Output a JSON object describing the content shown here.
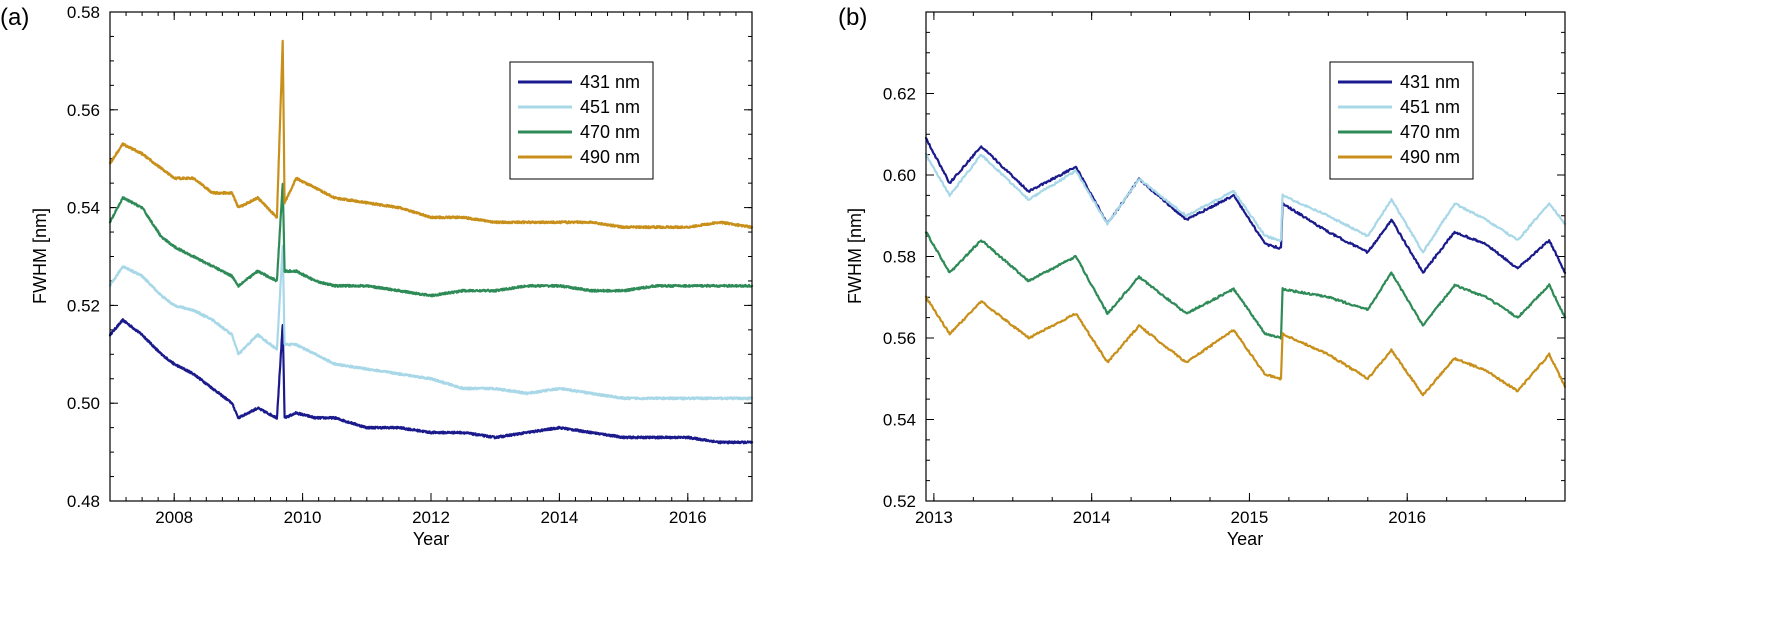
{
  "chart_data": [
    {
      "panel": "(a)",
      "type": "line",
      "xlabel": "Year",
      "ylabel": "FWHM [nm]",
      "xlim": [
        2007,
        2017
      ],
      "ylim": [
        0.48,
        0.58
      ],
      "xticks": [
        2008,
        2010,
        2012,
        2014,
        2016
      ],
      "yticks": [
        0.48,
        0.5,
        0.52,
        0.54,
        0.56,
        0.58
      ],
      "ytick_labels": [
        "0.48",
        "0.50",
        "0.52",
        "0.54",
        "0.56",
        "0.58"
      ],
      "legend_position": "top-right",
      "series": [
        {
          "name": "431 nm",
          "color": "#1a1a8c",
          "x": [
            2007.0,
            2007.2,
            2007.5,
            2007.8,
            2008.0,
            2008.3,
            2008.6,
            2008.9,
            2009.0,
            2009.3,
            2009.6,
            2009.69,
            2009.72,
            2009.9,
            2010.2,
            2010.5,
            2011.0,
            2011.5,
            2012.0,
            2012.5,
            2013.0,
            2013.5,
            2014.0,
            2014.5,
            2015.0,
            2015.5,
            2016.0,
            2016.5,
            2017.0
          ],
          "y": [
            0.514,
            0.517,
            0.514,
            0.51,
            0.508,
            0.506,
            0.503,
            0.5,
            0.497,
            0.499,
            0.497,
            0.516,
            0.497,
            0.498,
            0.497,
            0.497,
            0.495,
            0.495,
            0.494,
            0.494,
            0.493,
            0.494,
            0.495,
            0.494,
            0.493,
            0.493,
            0.493,
            0.492,
            0.492
          ]
        },
        {
          "name": "451 nm",
          "color": "#a8d8e8",
          "x": [
            2007.0,
            2007.2,
            2007.5,
            2007.8,
            2008.0,
            2008.3,
            2008.6,
            2008.9,
            2009.0,
            2009.3,
            2009.6,
            2009.69,
            2009.72,
            2009.9,
            2010.2,
            2010.5,
            2011.0,
            2011.5,
            2012.0,
            2012.5,
            2013.0,
            2013.5,
            2014.0,
            2014.5,
            2015.0,
            2015.5,
            2016.0,
            2016.5,
            2017.0
          ],
          "y": [
            0.524,
            0.528,
            0.526,
            0.522,
            0.52,
            0.519,
            0.517,
            0.514,
            0.51,
            0.514,
            0.511,
            0.532,
            0.512,
            0.512,
            0.51,
            0.508,
            0.507,
            0.506,
            0.505,
            0.503,
            0.503,
            0.502,
            0.503,
            0.502,
            0.501,
            0.501,
            0.501,
            0.501,
            0.501
          ]
        },
        {
          "name": "470 nm",
          "color": "#2e8b57",
          "x": [
            2007.0,
            2007.2,
            2007.5,
            2007.8,
            2008.0,
            2008.3,
            2008.6,
            2008.9,
            2009.0,
            2009.3,
            2009.6,
            2009.69,
            2009.72,
            2009.9,
            2010.2,
            2010.5,
            2011.0,
            2011.5,
            2012.0,
            2012.5,
            2013.0,
            2013.5,
            2014.0,
            2014.5,
            2015.0,
            2015.5,
            2016.0,
            2016.5,
            2017.0
          ],
          "y": [
            0.537,
            0.542,
            0.54,
            0.534,
            0.532,
            0.53,
            0.528,
            0.526,
            0.524,
            0.527,
            0.525,
            0.545,
            0.527,
            0.527,
            0.525,
            0.524,
            0.524,
            0.523,
            0.522,
            0.523,
            0.523,
            0.524,
            0.524,
            0.523,
            0.523,
            0.524,
            0.524,
            0.524,
            0.524
          ]
        },
        {
          "name": "490 nm",
          "color": "#c8901a",
          "x": [
            2007.0,
            2007.2,
            2007.5,
            2007.8,
            2008.0,
            2008.3,
            2008.6,
            2008.9,
            2009.0,
            2009.3,
            2009.6,
            2009.69,
            2009.72,
            2009.9,
            2010.2,
            2010.5,
            2011.0,
            2011.5,
            2012.0,
            2012.5,
            2013.0,
            2013.5,
            2014.0,
            2014.5,
            2015.0,
            2015.5,
            2016.0,
            2016.5,
            2017.0
          ],
          "y": [
            0.549,
            0.553,
            0.551,
            0.548,
            0.546,
            0.546,
            0.543,
            0.543,
            0.54,
            0.542,
            0.538,
            0.574,
            0.541,
            0.546,
            0.544,
            0.542,
            0.541,
            0.54,
            0.538,
            0.538,
            0.537,
            0.537,
            0.537,
            0.537,
            0.536,
            0.536,
            0.536,
            0.537,
            0.536
          ]
        }
      ]
    },
    {
      "panel": "(b)",
      "type": "line",
      "xlabel": "Year",
      "ylabel": "FWHM [nm]",
      "xlim": [
        2012.95,
        2017.0
      ],
      "ylim": [
        0.52,
        0.64
      ],
      "xticks": [
        2013,
        2014,
        2015,
        2016
      ],
      "yticks": [
        0.52,
        0.54,
        0.56,
        0.58,
        0.6,
        0.62
      ],
      "ytick_labels": [
        "0.52",
        "0.54",
        "0.56",
        "0.58",
        "0.60",
        "0.62"
      ],
      "legend_position": "top-right",
      "series": [
        {
          "name": "431 nm",
          "color": "#1a1a8c",
          "x": [
            2012.95,
            2013.1,
            2013.3,
            2013.6,
            2013.9,
            2014.1,
            2014.3,
            2014.6,
            2014.9,
            2015.1,
            2015.2,
            2015.21,
            2015.5,
            2015.75,
            2015.9,
            2016.1,
            2016.3,
            2016.5,
            2016.7,
            2016.9,
            2017.0
          ],
          "y": [
            0.609,
            0.598,
            0.607,
            0.596,
            0.602,
            0.588,
            0.599,
            0.589,
            0.595,
            0.583,
            0.582,
            0.593,
            0.586,
            0.581,
            0.589,
            0.576,
            0.586,
            0.583,
            0.577,
            0.584,
            0.576
          ]
        },
        {
          "name": "451 nm",
          "color": "#a8d8e8",
          "x": [
            2012.95,
            2013.1,
            2013.3,
            2013.6,
            2013.9,
            2014.1,
            2014.3,
            2014.6,
            2014.9,
            2015.1,
            2015.2,
            2015.21,
            2015.5,
            2015.75,
            2015.9,
            2016.1,
            2016.3,
            2016.5,
            2016.7,
            2016.9,
            2017.0
          ],
          "y": [
            0.605,
            0.595,
            0.605,
            0.594,
            0.601,
            0.588,
            0.599,
            0.59,
            0.596,
            0.585,
            0.584,
            0.595,
            0.59,
            0.585,
            0.594,
            0.581,
            0.593,
            0.589,
            0.584,
            0.593,
            0.588
          ]
        },
        {
          "name": "470 nm",
          "color": "#2e8b57",
          "x": [
            2012.95,
            2013.1,
            2013.3,
            2013.6,
            2013.9,
            2014.1,
            2014.3,
            2014.6,
            2014.9,
            2015.1,
            2015.2,
            2015.21,
            2015.5,
            2015.75,
            2015.9,
            2016.1,
            2016.3,
            2016.5,
            2016.7,
            2016.9,
            2017.0
          ],
          "y": [
            0.586,
            0.576,
            0.584,
            0.574,
            0.58,
            0.566,
            0.575,
            0.566,
            0.572,
            0.561,
            0.56,
            0.572,
            0.57,
            0.567,
            0.576,
            0.563,
            0.573,
            0.57,
            0.565,
            0.573,
            0.565
          ]
        },
        {
          "name": "490 nm",
          "color": "#c8901a",
          "x": [
            2012.95,
            2013.1,
            2013.3,
            2013.6,
            2013.9,
            2014.1,
            2014.3,
            2014.6,
            2014.9,
            2015.1,
            2015.2,
            2015.21,
            2015.5,
            2015.75,
            2015.9,
            2016.1,
            2016.3,
            2016.5,
            2016.7,
            2016.9,
            2017.0
          ],
          "y": [
            0.57,
            0.561,
            0.569,
            0.56,
            0.566,
            0.554,
            0.563,
            0.554,
            0.562,
            0.551,
            0.55,
            0.561,
            0.556,
            0.55,
            0.557,
            0.546,
            0.555,
            0.552,
            0.547,
            0.556,
            0.548
          ]
        }
      ]
    }
  ]
}
